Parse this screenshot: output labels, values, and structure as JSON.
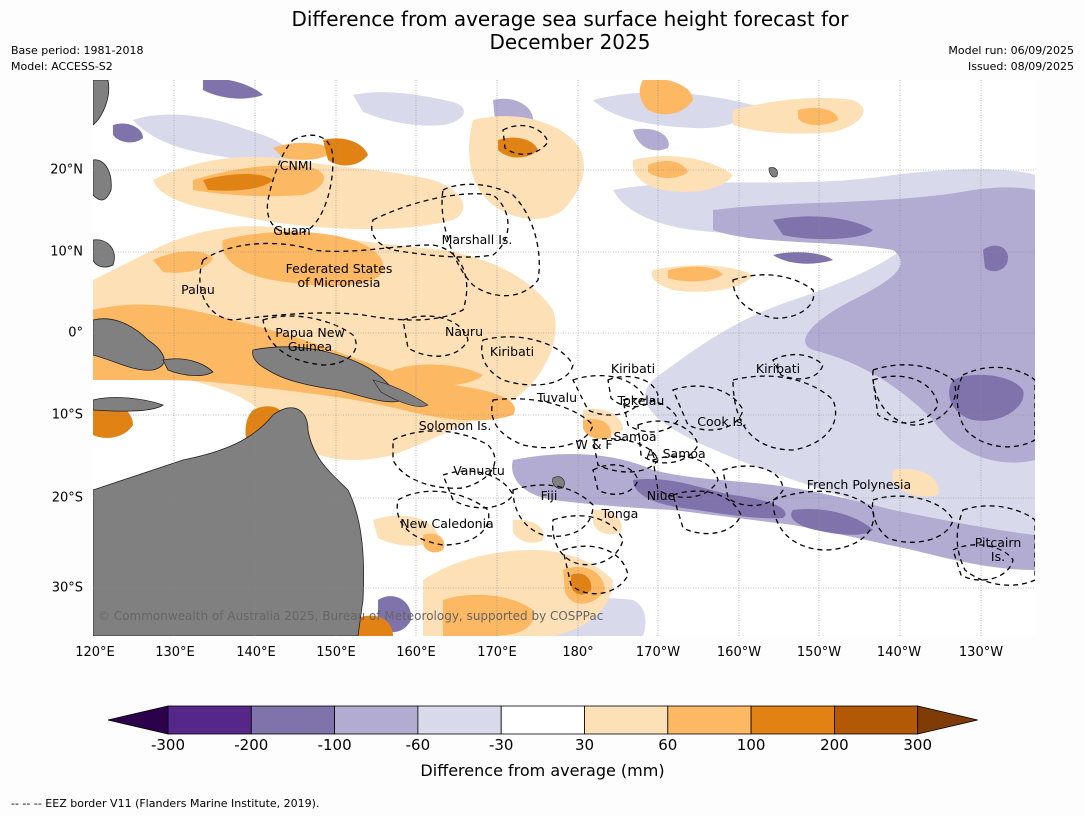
{
  "title": {
    "line1": "Difference from average sea surface height forecast for",
    "line2": "December 2025"
  },
  "meta_left": {
    "base_period": "Base period: 1981-2018",
    "model": "Model: ACCESS-S2"
  },
  "meta_right": {
    "model_run": "Model run: 06/09/2025",
    "issued": "Issued: 08/09/2025"
  },
  "map": {
    "lon_ticks": [
      "120°E",
      "130°E",
      "140°E",
      "150°E",
      "160°E",
      "170°E",
      "180°",
      "170°W",
      "160°W",
      "150°W",
      "140°W",
      "130°W"
    ],
    "lat_ticks": [
      "20°N",
      "10°N",
      "0°",
      "10°S",
      "20°S",
      "30°S"
    ],
    "places": [
      {
        "id": "cnmi",
        "text": "CNMI"
      },
      {
        "id": "guam",
        "text": "Guam"
      },
      {
        "id": "marshall",
        "text": "Marshall Is."
      },
      {
        "id": "palau",
        "text": "Palau"
      },
      {
        "id": "fsm",
        "text": "Federated States\nof Micronesia"
      },
      {
        "id": "png",
        "text": "Papua New\nGuinea"
      },
      {
        "id": "nauru",
        "text": "Nauru"
      },
      {
        "id": "kiribati-w",
        "text": "Kiribati"
      },
      {
        "id": "kiribati-c",
        "text": "Kiribati"
      },
      {
        "id": "kiribati-e",
        "text": "Kiribati"
      },
      {
        "id": "tuvalu",
        "text": "Tuvalu"
      },
      {
        "id": "tokelau",
        "text": "Tokelau"
      },
      {
        "id": "cook",
        "text": "Cook Is."
      },
      {
        "id": "solomon",
        "text": "Solomon Is."
      },
      {
        "id": "samoa",
        "text": "Samoa"
      },
      {
        "id": "wf",
        "text": "W & F"
      },
      {
        "id": "asamoa",
        "text": "A. Samoa"
      },
      {
        "id": "vanuatu",
        "text": "Vanuatu"
      },
      {
        "id": "fiji",
        "text": "Fiji"
      },
      {
        "id": "niue",
        "text": "Niue"
      },
      {
        "id": "fpoly",
        "text": "French Polynesia"
      },
      {
        "id": "tonga",
        "text": "Tonga"
      },
      {
        "id": "newcal",
        "text": "New Caledonia"
      },
      {
        "id": "pitcairn",
        "text": "Pitcairn\nIs."
      }
    ],
    "copyright": "© Commonwealth of Australia 2025, Bureau of Meteorology, supported by COSPPac"
  },
  "colorbar": {
    "label": "Difference from average (mm)",
    "ticks": [
      "-300",
      "-200",
      "-100",
      "-60",
      "-30",
      "30",
      "60",
      "100",
      "200",
      "300"
    ],
    "colors": [
      "#2d004b",
      "#542788",
      "#8073ac",
      "#b2abd2",
      "#d8daeb",
      "#ffffff",
      "#fee0b6",
      "#fdb863",
      "#e08214",
      "#b35806",
      "#7f3b08"
    ]
  },
  "footnote": "--  --  -- EEZ border V11 (Flanders Marine Institute, 2019)."
}
